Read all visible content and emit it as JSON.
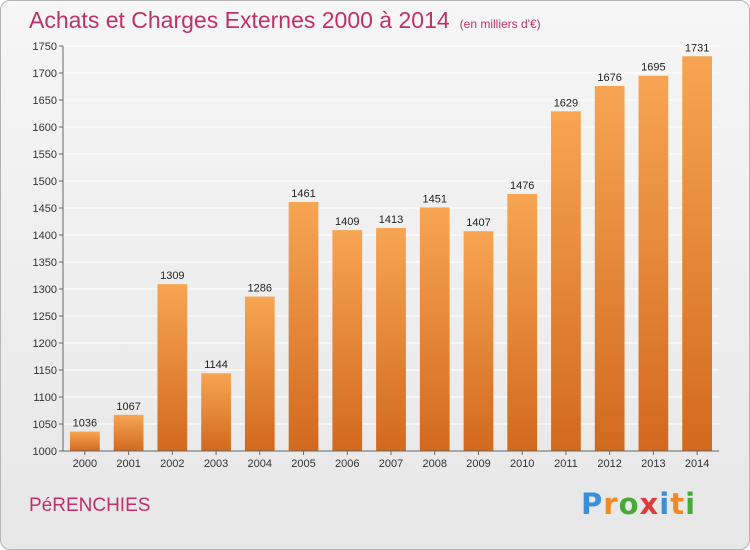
{
  "header": {
    "title": "Achats et Charges Externes 2000 à 2014",
    "unit": "(en milliers d'€)"
  },
  "footer": {
    "place": "PéRENCHIES",
    "logo_letters": [
      "P",
      "r",
      "o",
      "x",
      "i",
      "t",
      "i"
    ],
    "logo_colors": [
      "#3a8fd8",
      "#f08a24",
      "#4aa83a",
      "#e03a3a",
      "#3a8fd8",
      "#f08a24",
      "#4aa83a"
    ]
  },
  "colors": {
    "bar_top": "#f7a553",
    "bar_bottom": "#d2691e",
    "title": "#c0306a",
    "grid": "#ffffff"
  },
  "chart_data": {
    "type": "bar",
    "categories": [
      "2000",
      "2001",
      "2002",
      "2003",
      "2004",
      "2005",
      "2006",
      "2007",
      "2008",
      "2009",
      "2010",
      "2011",
      "2012",
      "2013",
      "2014"
    ],
    "values": [
      1036,
      1067,
      1309,
      1144,
      1286,
      1461,
      1409,
      1413,
      1451,
      1407,
      1476,
      1629,
      1676,
      1695,
      1731
    ],
    "title": "Achats et Charges Externes 2000 à 2014",
    "ylim": [
      1000,
      1750
    ],
    "yticks": [
      1000,
      1050,
      1100,
      1150,
      1200,
      1250,
      1300,
      1350,
      1400,
      1450,
      1500,
      1550,
      1600,
      1650,
      1700,
      1750
    ],
    "grid": true,
    "legend": "none"
  }
}
